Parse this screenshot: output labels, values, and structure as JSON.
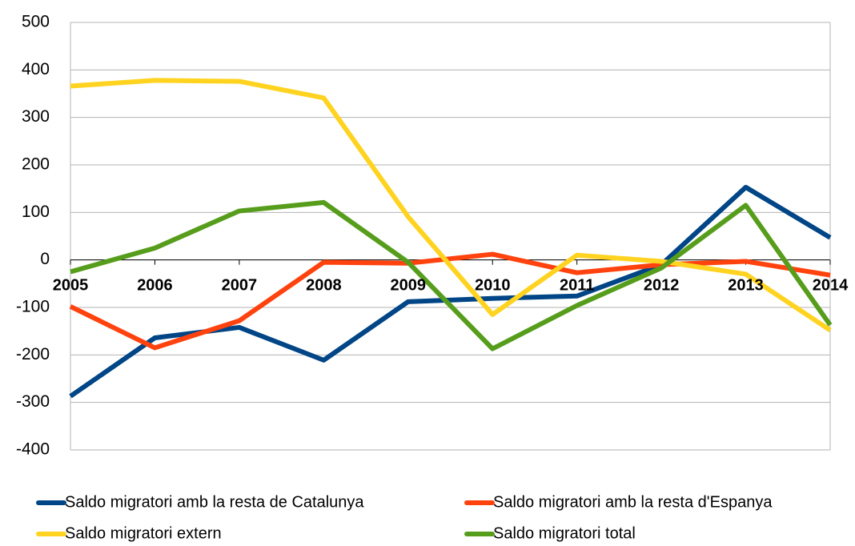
{
  "chart_data": {
    "type": "line",
    "categories": [
      "2005",
      "2006",
      "2007",
      "2008",
      "2009",
      "2010",
      "2011",
      "2012",
      "2013",
      "2014"
    ],
    "series": [
      {
        "name": "Saldo migratori amb la resta de Catalunya",
        "color": "#004586",
        "values": [
          -287,
          -164,
          -142,
          -211,
          -88,
          -81,
          -76,
          -10,
          153,
          47
        ]
      },
      {
        "name": "Saldo migratori amb la resta d'Espanya",
        "color": "#ff420e",
        "values": [
          -98,
          -185,
          -128,
          -5,
          -7,
          12,
          -27,
          -10,
          -3,
          -32
        ]
      },
      {
        "name": "Saldo migratori extern",
        "color": "#ffd320",
        "values": [
          366,
          378,
          376,
          341,
          91,
          -115,
          10,
          -3,
          -30,
          -148
        ]
      },
      {
        "name": "Saldo migratori total",
        "color": "#579d1c",
        "values": [
          -25,
          25,
          103,
          121,
          -5,
          -187,
          -96,
          -17,
          115,
          -137
        ]
      }
    ],
    "ylim": [
      -400,
      500
    ],
    "yticks": [
      -400,
      -300,
      -200,
      -100,
      0,
      100,
      200,
      300,
      400,
      500
    ],
    "grid": true,
    "legend": "bottom"
  }
}
